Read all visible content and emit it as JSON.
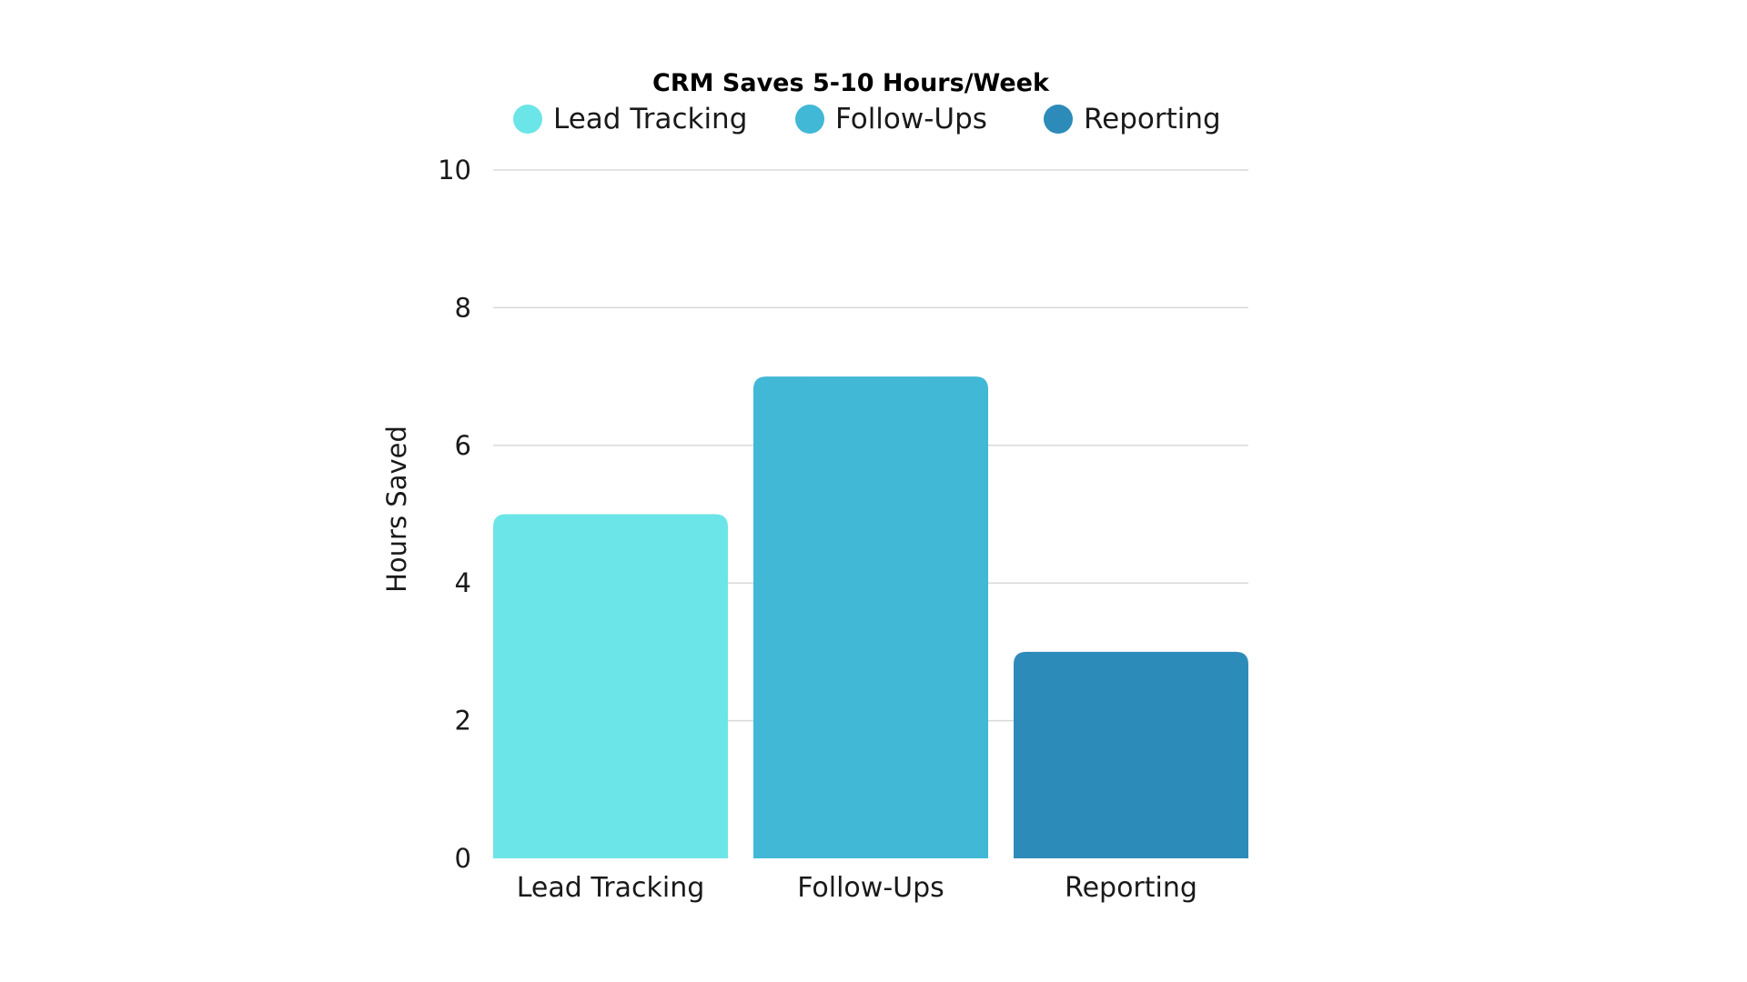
{
  "chart_data": {
    "type": "bar",
    "title": "CRM Saves 5-10 Hours/Week",
    "categories": [
      "Lead Tracking",
      "Follow-Ups",
      "Reporting"
    ],
    "values": [
      5,
      7,
      3
    ],
    "colors": [
      "#6ce5e8",
      "#41b8d5",
      "#2d8bba"
    ],
    "legend": {
      "placement": "top",
      "entries": [
        "Lead Tracking",
        "Follow-Ups",
        "Reporting"
      ]
    },
    "xlabel": "",
    "ylabel": "Hours Saved",
    "ylim": [
      0,
      10
    ],
    "yticks": [
      0,
      2,
      4,
      6,
      8,
      10
    ],
    "grid": true
  }
}
